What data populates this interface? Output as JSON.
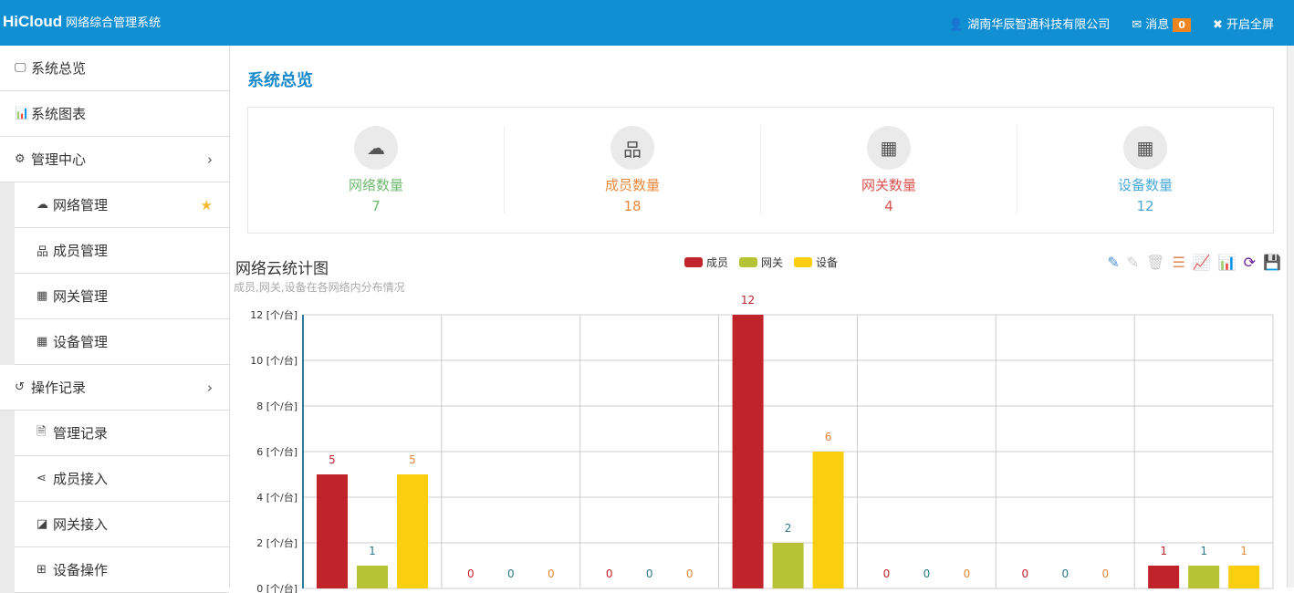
{
  "header": {
    "brand": "HiCloud",
    "system": "网络综合管理系统",
    "company": "湖南华辰智通科技有限公司",
    "messages_label": "消息",
    "messages_count": "0",
    "fullscreen_label": "开启全屏"
  },
  "sidebar": {
    "items": [
      {
        "label": "系统总览",
        "icon": "monitor-icon",
        "sub": false
      },
      {
        "label": "系统图表",
        "icon": "bar-chart-icon",
        "sub": false
      },
      {
        "label": "管理中心",
        "icon": "gears-icon",
        "sub": false,
        "arrow": true
      },
      {
        "label": "网络管理",
        "icon": "cloud-icon",
        "sub": true,
        "star": true
      },
      {
        "label": "成员管理",
        "icon": "sitemap-icon",
        "sub": true
      },
      {
        "label": "网关管理",
        "icon": "grid-icon",
        "sub": true
      },
      {
        "label": "设备管理",
        "icon": "calendar-icon",
        "sub": true
      },
      {
        "label": "操作记录",
        "icon": "history-icon",
        "sub": false,
        "arrow": true
      },
      {
        "label": "管理记录",
        "icon": "file-icon",
        "sub": true
      },
      {
        "label": "成员接入",
        "icon": "share-icon",
        "sub": true
      },
      {
        "label": "网关接入",
        "icon": "share-square-icon",
        "sub": true
      },
      {
        "label": "设备操作",
        "icon": "plus-square-icon",
        "sub": true
      }
    ]
  },
  "page_title": "系统总览",
  "stats": [
    {
      "label": "网络数量",
      "value": "7",
      "color": "#6fba6f",
      "icon": "cloud-icon"
    },
    {
      "label": "成员数量",
      "value": "18",
      "color": "#e8883a",
      "icon": "sitemap-icon"
    },
    {
      "label": "网关数量",
      "value": "4",
      "color": "#d9534f",
      "icon": "grid-icon"
    },
    {
      "label": "设备数量",
      "value": "12",
      "color": "#4aa8d8",
      "icon": "calendar-icon"
    }
  ],
  "chart_data": {
    "type": "bar",
    "title": "网络云统计图",
    "subtitle": "成员,网关,设备在各网络内分布情况",
    "ylabel_unit": "[个/台]",
    "ylim": [
      0,
      12
    ],
    "yticks": [
      0,
      2,
      4,
      6,
      8,
      10,
      12
    ],
    "grid": true,
    "legend_position": "top-center",
    "categories": [
      "",
      "",
      "",
      "",
      "",
      "",
      ""
    ],
    "series": [
      {
        "name": "成员",
        "color": "#c1232b",
        "values": [
          5,
          0,
          0,
          12,
          0,
          0,
          1
        ]
      },
      {
        "name": "网关",
        "color": "#b5c334",
        "values": [
          1,
          0,
          0,
          2,
          0,
          0,
          1
        ]
      },
      {
        "name": "设备",
        "color": "#fcce10",
        "values": [
          5,
          0,
          0,
          6,
          0,
          0,
          1
        ]
      }
    ],
    "label_colors": [
      "#c1232b",
      "#2a7a8a",
      "#e8883a"
    ]
  },
  "toolbar_icons": [
    "mark-icon",
    "unmark-icon",
    "clear-icon",
    "data-view-icon",
    "line-chart-icon",
    "bar-chart-icon",
    "restore-icon",
    "save-image-icon"
  ]
}
